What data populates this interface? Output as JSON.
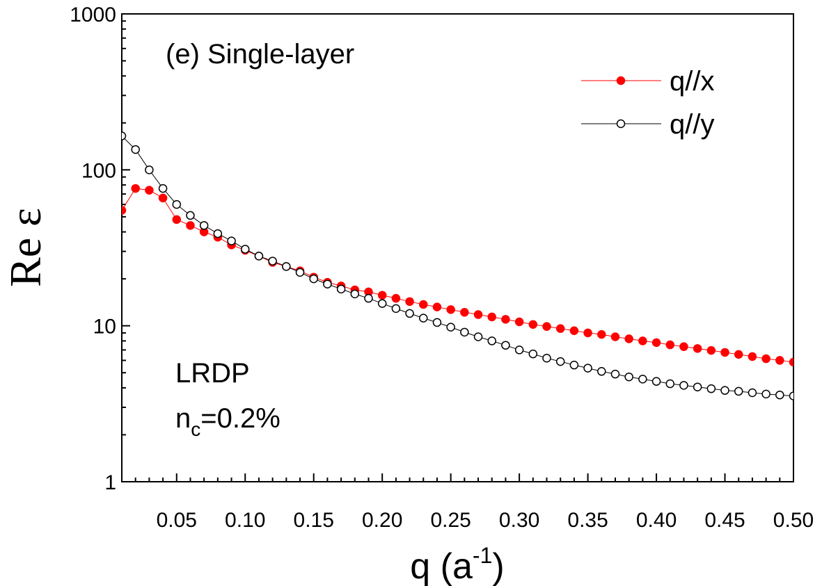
{
  "chart_data": {
    "type": "scatter",
    "title": "",
    "annotations": {
      "panel": "(e) Single-layer",
      "method": "LRDP",
      "nc_base": "n",
      "nc_sub": "c",
      "nc_rest": "=0.2%"
    },
    "xlabel": {
      "main": "q (a",
      "sup": "-1",
      "close": ")"
    },
    "ylabel": "Re ε",
    "xlim": [
      0.01,
      0.5
    ],
    "ylim": [
      1,
      1000
    ],
    "yscale": "log",
    "grid": false,
    "legend_position": "top-right",
    "x_ticks": [
      "0.05",
      "0.10",
      "0.15",
      "0.20",
      "0.25",
      "0.30",
      "0.35",
      "0.40",
      "0.45",
      "0.50"
    ],
    "y_ticks": [
      "1",
      "10",
      "100",
      "1000"
    ],
    "x": [
      0.01,
      0.02,
      0.03,
      0.04,
      0.05,
      0.06,
      0.07,
      0.08,
      0.09,
      0.1,
      0.11,
      0.12,
      0.13,
      0.14,
      0.15,
      0.16,
      0.17,
      0.18,
      0.19,
      0.2,
      0.21,
      0.22,
      0.23,
      0.24,
      0.25,
      0.26,
      0.27,
      0.28,
      0.29,
      0.3,
      0.31,
      0.32,
      0.33,
      0.34,
      0.35,
      0.36,
      0.37,
      0.38,
      0.39,
      0.4,
      0.41,
      0.42,
      0.43,
      0.44,
      0.45,
      0.46,
      0.47,
      0.48,
      0.49,
      0.5
    ],
    "series": [
      {
        "name": "q//x",
        "color": "#ff0000",
        "marker": "filled-circle",
        "values": [
          55,
          76,
          74,
          66,
          48,
          44,
          40,
          37,
          33,
          30.5,
          28,
          25.5,
          24,
          22.5,
          20.5,
          19,
          18,
          17,
          16.5,
          15.7,
          15,
          14.3,
          13.7,
          13.2,
          12.7,
          12.2,
          11.8,
          11.4,
          11.0,
          10.6,
          10.2,
          9.9,
          9.6,
          9.3,
          9.0,
          8.8,
          8.5,
          8.25,
          8.0,
          7.8,
          7.55,
          7.35,
          7.15,
          6.95,
          6.75,
          6.55,
          6.35,
          6.15,
          6.0,
          5.85
        ]
      },
      {
        "name": "q//y",
        "color": "#000000",
        "marker": "open-circle",
        "values": [
          165,
          135,
          100,
          76,
          60,
          51,
          44,
          39,
          35,
          31,
          28,
          26,
          24,
          22,
          20,
          18.5,
          17.2,
          16,
          15,
          13.9,
          12.9,
          12,
          11.2,
          10.5,
          9.8,
          9.1,
          8.5,
          8.0,
          7.5,
          7.0,
          6.6,
          6.2,
          5.9,
          5.6,
          5.35,
          5.1,
          4.9,
          4.7,
          4.55,
          4.4,
          4.25,
          4.15,
          4.05,
          3.95,
          3.85,
          3.8,
          3.72,
          3.65,
          3.6,
          3.55
        ]
      }
    ]
  }
}
